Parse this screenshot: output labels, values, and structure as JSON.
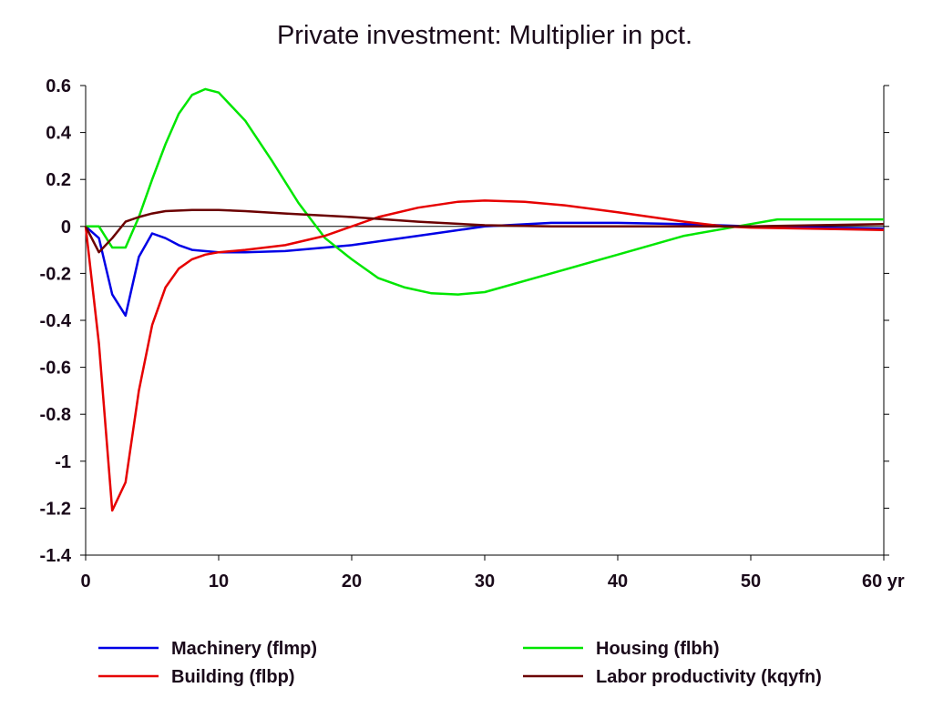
{
  "chart_data": {
    "type": "line",
    "title": "Private investment: Multiplier in pct.",
    "x_unit_label": "yr",
    "xlim": [
      0,
      60
    ],
    "ylim": [
      -1.4,
      0.6
    ],
    "x_ticks": [
      0,
      10,
      20,
      30,
      40,
      50,
      60
    ],
    "x_tick_labels": [
      "0",
      "10",
      "20",
      "30",
      "40",
      "50",
      "60 yr"
    ],
    "y_ticks": [
      0.6,
      0.4,
      0.2,
      0,
      -0.2,
      -0.4,
      -0.6,
      -0.8,
      -1,
      -1.2,
      -1.4
    ],
    "y_tick_labels": [
      "0.6",
      "0.4",
      "0.2",
      "0",
      "-0.2",
      "-0.4",
      "-0.6",
      "-0.8",
      "-1",
      "-1.2",
      "-1.4"
    ],
    "zero_line": true,
    "grid": false,
    "legend_position": "bottom",
    "series": [
      {
        "name": "Machinery (flmp)",
        "color": "#0000e6",
        "x": [
          0,
          1,
          2,
          3,
          4,
          5,
          6,
          7,
          8,
          10,
          12,
          15,
          18,
          20,
          25,
          30,
          35,
          40,
          45,
          50,
          55,
          60
        ],
        "y": [
          0,
          -0.05,
          -0.29,
          -0.38,
          -0.13,
          -0.03,
          -0.05,
          -0.08,
          -0.1,
          -0.11,
          -0.11,
          -0.105,
          -0.09,
          -0.08,
          -0.04,
          0,
          0.015,
          0.015,
          0.01,
          0,
          -0.005,
          -0.01
        ]
      },
      {
        "name": "Housing (flbh)",
        "color": "#00e600",
        "x": [
          0,
          1,
          2,
          3,
          4,
          5,
          6,
          7,
          8,
          9,
          10,
          12,
          14,
          16,
          18,
          20,
          22,
          24,
          26,
          28,
          30,
          35,
          40,
          45,
          50,
          52,
          55,
          58,
          60
        ],
        "y": [
          0,
          0,
          -0.09,
          -0.09,
          0.04,
          0.2,
          0.35,
          0.48,
          0.56,
          0.585,
          0.57,
          0.45,
          0.28,
          0.1,
          -0.05,
          -0.14,
          -0.22,
          -0.26,
          -0.285,
          -0.29,
          -0.28,
          -0.2,
          -0.12,
          -0.04,
          0.01,
          0.03,
          0.03,
          0.03,
          0.03
        ]
      },
      {
        "name": "Building (flbp)",
        "color": "#e60000",
        "x": [
          0,
          1,
          2,
          3,
          4,
          5,
          6,
          7,
          8,
          9,
          10,
          12,
          15,
          18,
          20,
          22,
          25,
          28,
          30,
          33,
          36,
          40,
          45,
          48,
          50,
          55,
          60
        ],
        "y": [
          0,
          -0.5,
          -1.21,
          -1.09,
          -0.7,
          -0.42,
          -0.26,
          -0.18,
          -0.14,
          -0.12,
          -0.11,
          -0.1,
          -0.08,
          -0.04,
          0.0,
          0.04,
          0.08,
          0.105,
          0.11,
          0.105,
          0.09,
          0.06,
          0.02,
          0.0,
          -0.005,
          -0.01,
          -0.015
        ]
      },
      {
        "name": "Labor productivity (kqyfn)",
        "color": "#6b0000",
        "x": [
          0,
          1,
          2,
          3,
          4,
          5,
          6,
          8,
          10,
          12,
          15,
          20,
          25,
          30,
          35,
          40,
          45,
          50,
          55,
          60
        ],
        "y": [
          0,
          -0.11,
          -0.05,
          0.02,
          0.04,
          0.055,
          0.065,
          0.07,
          0.07,
          0.065,
          0.055,
          0.04,
          0.02,
          0.005,
          0,
          0,
          0,
          0,
          0.005,
          0.01
        ]
      }
    ]
  }
}
